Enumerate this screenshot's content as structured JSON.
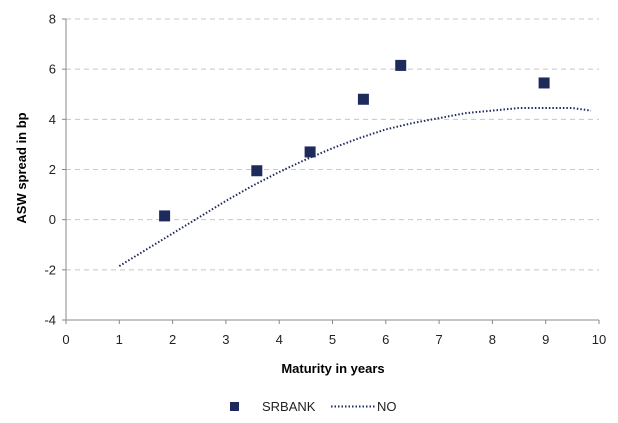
{
  "chart_data": {
    "type": "scatter",
    "title": "",
    "xlabel": "Maturity in years",
    "ylabel": "ASW spread in bp",
    "xlim": [
      0,
      10
    ],
    "ylim": [
      -4,
      8
    ],
    "x_ticks": [
      "0",
      "1",
      "2",
      "3",
      "4",
      "5",
      "6",
      "7",
      "8",
      "9",
      "10"
    ],
    "y_ticks": [
      "-4",
      "-2",
      "0",
      "2",
      "4",
      "6",
      "8"
    ],
    "grid": "horizontal-dashed",
    "legend_position": "bottom",
    "series": [
      {
        "name": "SRBANK",
        "kind": "scatter",
        "marker": "square",
        "color": "#1f2a5c",
        "points": [
          {
            "x": 1.85,
            "y": 0.15
          },
          {
            "x": 3.58,
            "y": 1.95
          },
          {
            "x": 4.58,
            "y": 2.7
          },
          {
            "x": 5.58,
            "y": 4.8
          },
          {
            "x": 6.28,
            "y": 6.15
          },
          {
            "x": 8.97,
            "y": 5.45
          }
        ]
      },
      {
        "name": "NO",
        "kind": "line",
        "style": "dotted",
        "color": "#1f2a5c",
        "points": [
          {
            "x": 1.0,
            "y": -1.85
          },
          {
            "x": 1.5,
            "y": -1.2
          },
          {
            "x": 2.0,
            "y": -0.55
          },
          {
            "x": 2.5,
            "y": 0.1
          },
          {
            "x": 3.0,
            "y": 0.75
          },
          {
            "x": 3.5,
            "y": 1.35
          },
          {
            "x": 4.0,
            "y": 1.9
          },
          {
            "x": 4.5,
            "y": 2.4
          },
          {
            "x": 5.0,
            "y": 2.85
          },
          {
            "x": 5.5,
            "y": 3.25
          },
          {
            "x": 6.0,
            "y": 3.6
          },
          {
            "x": 6.5,
            "y": 3.85
          },
          {
            "x": 7.0,
            "y": 4.05
          },
          {
            "x": 7.5,
            "y": 4.25
          },
          {
            "x": 8.0,
            "y": 4.35
          },
          {
            "x": 8.5,
            "y": 4.45
          },
          {
            "x": 9.0,
            "y": 4.45
          },
          {
            "x": 9.5,
            "y": 4.45
          },
          {
            "x": 9.85,
            "y": 4.35
          }
        ]
      }
    ]
  }
}
